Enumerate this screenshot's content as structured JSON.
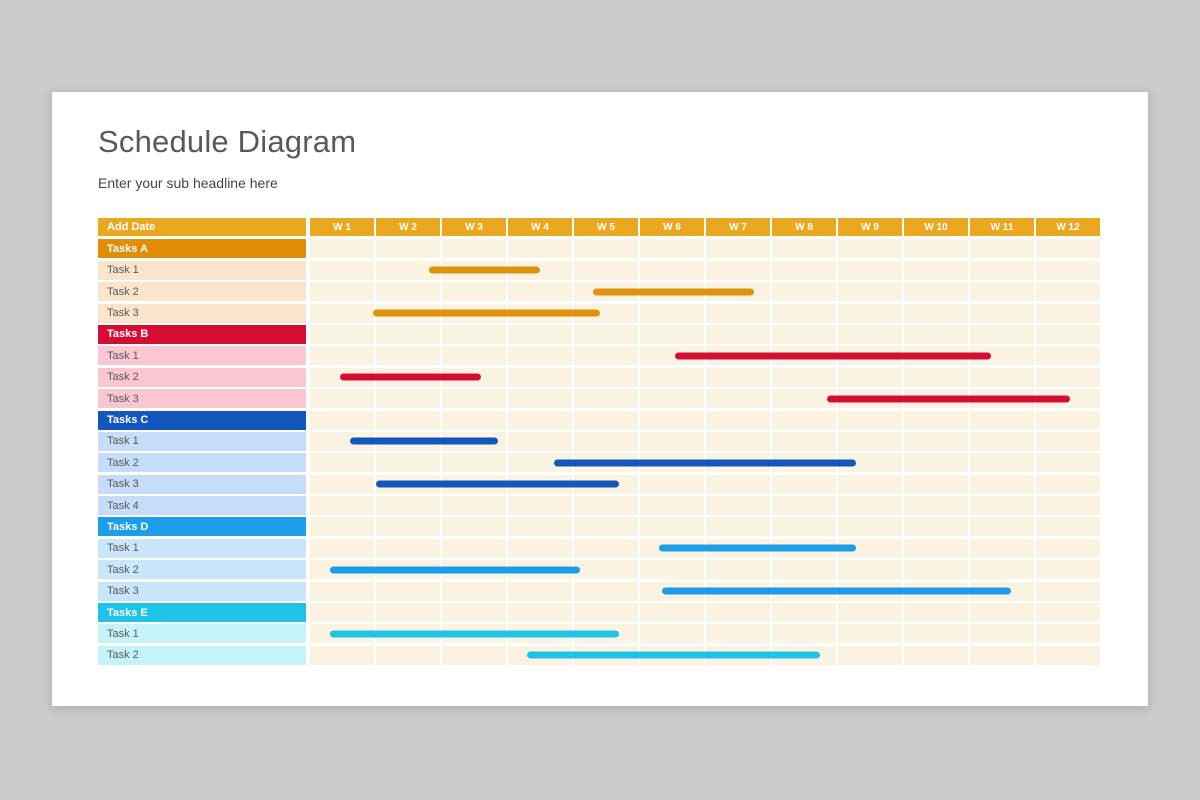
{
  "page": {
    "title": "Schedule Diagram",
    "subtitle": "Enter your sub headline here"
  },
  "chart_data": {
    "type": "gantt",
    "title": "Schedule Diagram",
    "date_column_header": "Add Date",
    "week_headers": [
      "W 1",
      "W 2",
      "W 3",
      "W 4",
      "W 5",
      "W 6",
      "W 7",
      "W 8",
      "W 9",
      "W 10",
      "W 11",
      "W 12"
    ],
    "weeks_total": 12,
    "colors": {
      "timeline_header": "#e9a820",
      "chart_background": "#faf3e1",
      "grid_line": "#ffffff"
    },
    "groups": [
      {
        "label": "Tasks A",
        "color": "#df8e06",
        "bar_color": "#e0910e",
        "row_bg": "#fbe4cc",
        "tasks": [
          {
            "label": "Task 1",
            "bar": {
              "start_week": 1.8,
              "end_week": 3.5
            }
          },
          {
            "label": "Task 2",
            "bar": {
              "start_week": 4.3,
              "end_week": 6.75
            }
          },
          {
            "label": "Task 3",
            "bar": {
              "start_week": 0.95,
              "end_week": 4.4
            }
          }
        ]
      },
      {
        "label": "Tasks B",
        "color": "#d60d33",
        "bar_color": "#d60d33",
        "row_bg": "#fac6d2",
        "tasks": [
          {
            "label": "Task 1",
            "bar": {
              "start_week": 5.55,
              "end_week": 10.35
            }
          },
          {
            "label": "Task 2",
            "bar": {
              "start_week": 0.45,
              "end_week": 2.6
            }
          },
          {
            "label": "Task 3",
            "bar": {
              "start_week": 7.85,
              "end_week": 11.55
            }
          }
        ]
      },
      {
        "label": "Tasks C",
        "color": "#1356bc",
        "bar_color": "#1356bc",
        "row_bg": "#c5ddf8",
        "tasks": [
          {
            "label": "Task 1",
            "bar": {
              "start_week": 0.6,
              "end_week": 2.85
            }
          },
          {
            "label": "Task 2",
            "bar": {
              "start_week": 3.7,
              "end_week": 8.3
            }
          },
          {
            "label": "Task 3",
            "bar": {
              "start_week": 1.0,
              "end_week": 4.7
            }
          },
          {
            "label": "Task 4",
            "bar": null
          }
        ]
      },
      {
        "label": "Tasks D",
        "color": "#1d9ce9",
        "bar_color": "#1d9ce9",
        "row_bg": "#c9e6fb",
        "tasks": [
          {
            "label": "Task 1",
            "bar": {
              "start_week": 5.3,
              "end_week": 8.3
            }
          },
          {
            "label": "Task 2",
            "bar": {
              "start_week": 0.3,
              "end_week": 4.1
            }
          },
          {
            "label": "Task 3",
            "bar": {
              "start_week": 5.35,
              "end_week": 10.65
            }
          }
        ]
      },
      {
        "label": "Tasks E",
        "color": "#1fc3e5",
        "bar_color": "#1fc3e5",
        "row_bg": "#c6f3fa",
        "tasks": [
          {
            "label": "Task 1",
            "bar": {
              "start_week": 0.3,
              "end_week": 4.7
            }
          },
          {
            "label": "Task 2",
            "bar": {
              "start_week": 3.3,
              "end_week": 7.75
            }
          }
        ]
      }
    ]
  }
}
